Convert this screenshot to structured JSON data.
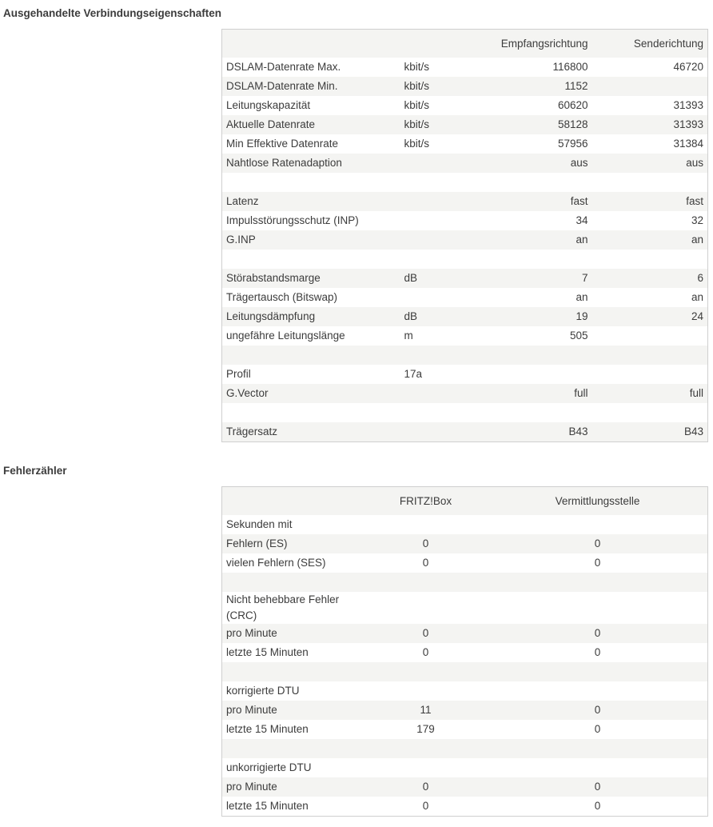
{
  "section1": {
    "title": "Ausgehandelte Verbindungseigenschaften",
    "headers": [
      "",
      "",
      "Empfangsrichtung",
      "Senderichtung"
    ],
    "rows": [
      [
        "DSLAM-Datenrate Max.",
        "kbit/s",
        "116800",
        "46720"
      ],
      [
        "DSLAM-Datenrate Min.",
        "kbit/s",
        "1152",
        ""
      ],
      [
        "Leitungskapazität",
        "kbit/s",
        "60620",
        "31393"
      ],
      [
        "Aktuelle Datenrate",
        "kbit/s",
        "58128",
        "31393"
      ],
      [
        "Min Effektive Datenrate",
        "kbit/s",
        "57956",
        "31384"
      ],
      [
        "Nahtlose Ratenadaption",
        "",
        "aus",
        "aus"
      ],
      [
        "",
        "",
        "",
        ""
      ],
      [
        "Latenz",
        "",
        "fast",
        "fast"
      ],
      [
        "Impulsstörungsschutz (INP)",
        "",
        "34",
        "32"
      ],
      [
        "G.INP",
        "",
        "an",
        "an"
      ],
      [
        "",
        "",
        "",
        ""
      ],
      [
        "Störabstandsmarge",
        "dB",
        "7",
        "6"
      ],
      [
        "Trägertausch (Bitswap)",
        "",
        "an",
        "an"
      ],
      [
        "Leitungsdämpfung",
        "dB",
        "19",
        "24"
      ],
      [
        "ungefähre Leitungslänge",
        "m",
        "505",
        ""
      ],
      [
        "",
        "",
        "",
        ""
      ],
      [
        "Profil",
        "17a",
        "",
        ""
      ],
      [
        "G.Vector",
        "",
        "full",
        "full"
      ],
      [
        "",
        "",
        "",
        ""
      ],
      [
        "Trägersatz",
        "",
        "B43",
        "B43"
      ]
    ]
  },
  "section2": {
    "title": "Fehlerzähler",
    "headers": [
      "",
      "FRITZ!Box",
      "Vermittlungsstelle"
    ],
    "rows": [
      [
        "Sekunden mit",
        "",
        ""
      ],
      [
        "Fehlern (ES)",
        "0",
        "0"
      ],
      [
        "vielen Fehlern (SES)",
        "0",
        "0"
      ],
      [
        "",
        "",
        ""
      ],
      [
        "Nicht behebbare Fehler (CRC)",
        "",
        ""
      ],
      [
        "pro Minute",
        "0",
        "0"
      ],
      [
        "letzte 15 Minuten",
        "0",
        "0"
      ],
      [
        "",
        "",
        ""
      ],
      [
        "korrigierte DTU",
        "",
        ""
      ],
      [
        "pro Minute",
        "11",
        "0"
      ],
      [
        "letzte 15 Minuten",
        "179",
        "0"
      ],
      [
        "",
        "",
        ""
      ],
      [
        "unkorrigierte DTU",
        "",
        ""
      ],
      [
        "pro Minute",
        "0",
        "0"
      ],
      [
        "letzte 15 Minuten",
        "0",
        "0"
      ]
    ]
  }
}
